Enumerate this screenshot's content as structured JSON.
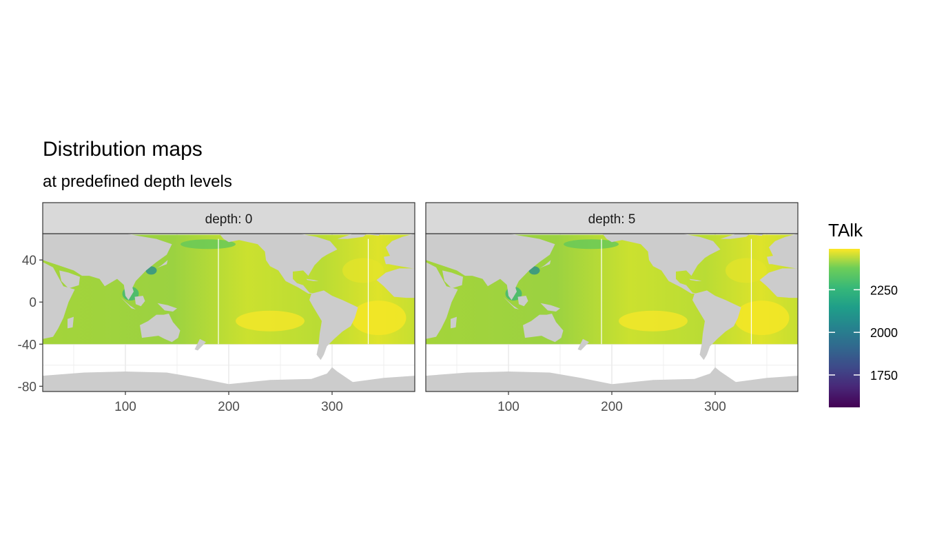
{
  "chart_data": {
    "type": "heatmap",
    "title": "Distribution maps",
    "subtitle": "at predefined depth levels",
    "xlabel": "",
    "ylabel": "",
    "xlim": [
      20,
      380
    ],
    "ylim": [
      -85,
      65
    ],
    "x_ticks": [
      100,
      200,
      300
    ],
    "y_ticks": [
      40,
      0,
      -40,
      -80
    ],
    "grid": true,
    "legend": {
      "title": "TAlk",
      "position": "right",
      "colormap": "viridis",
      "range": [
        1560,
        2490
      ],
      "ticks": [
        2250,
        2000,
        1750
      ]
    },
    "panels": [
      {
        "strip_label": "depth: 0",
        "depth": 0
      },
      {
        "strip_label": "depth: 5",
        "depth": 5
      }
    ]
  },
  "colors": {
    "land": "#cccccc",
    "strip_fill": "#d9d9d9",
    "panel_border": "#333333",
    "grid": "#ebebeb"
  }
}
